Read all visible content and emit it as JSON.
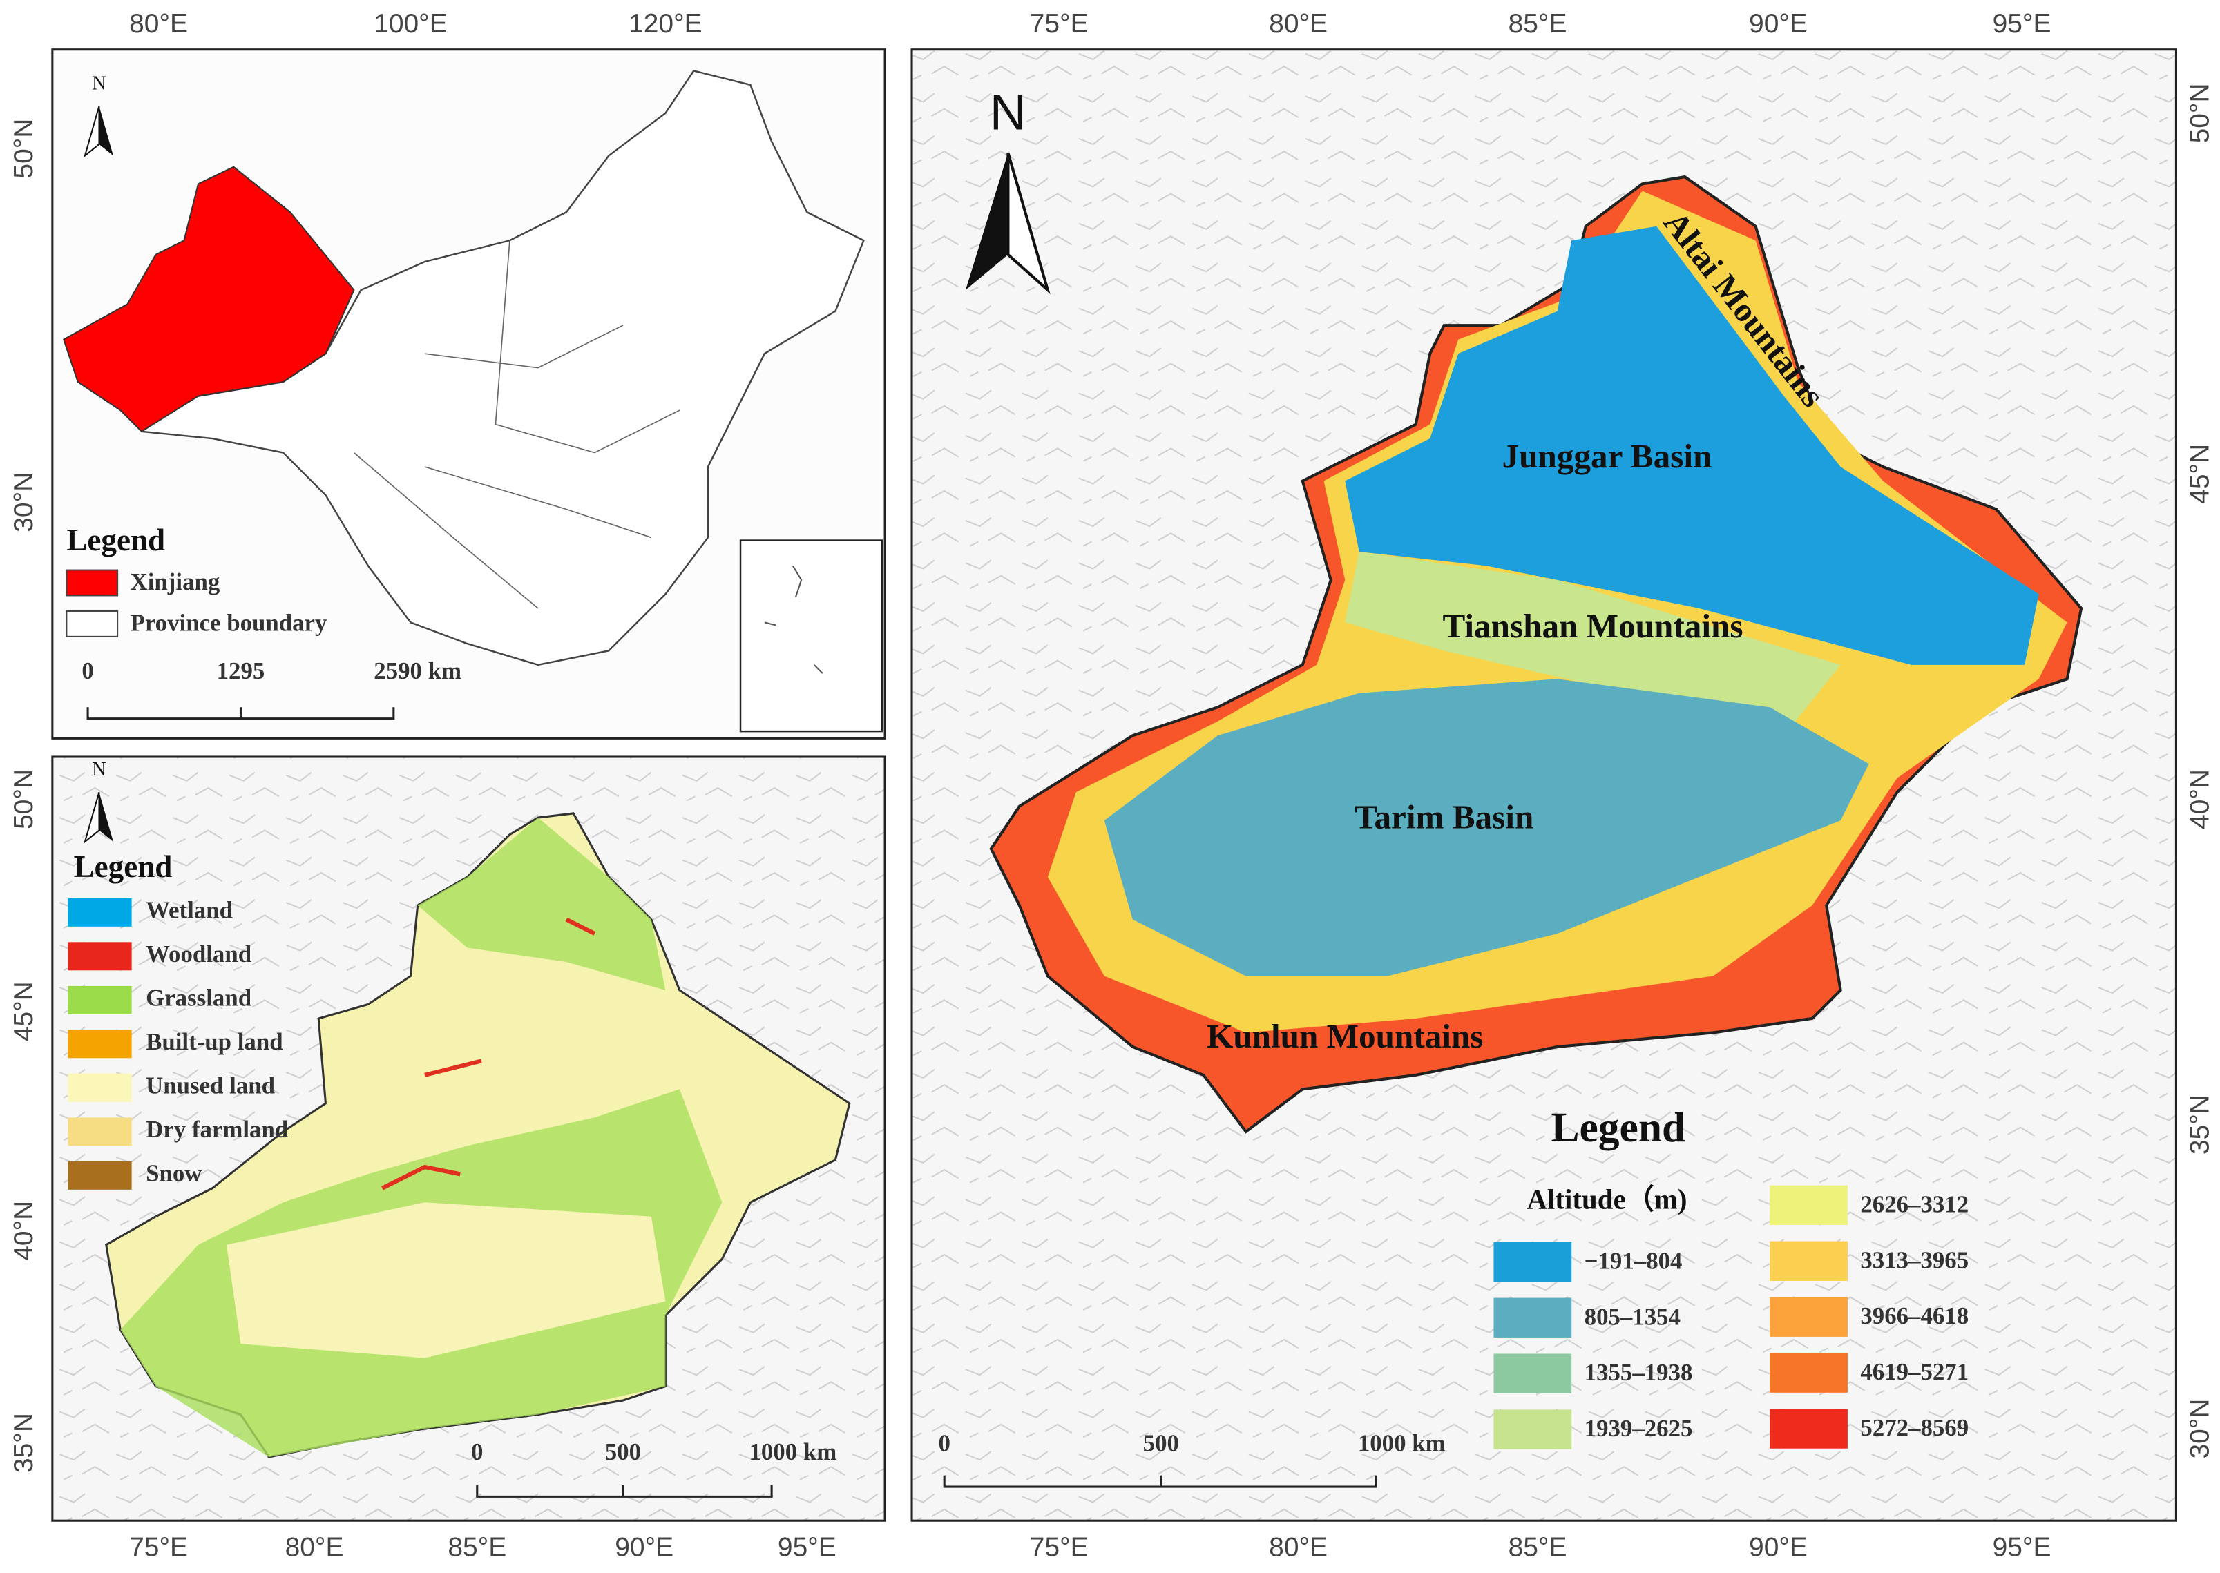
{
  "panel_a": {
    "top_labels": [
      "80°E",
      "100°E",
      "120°E"
    ],
    "left_labels": [
      "50°N",
      "30°N"
    ],
    "north": "N",
    "legend_title": "Legend",
    "legend_items": [
      {
        "label": "Xinjiang",
        "color": "#ff0000"
      },
      {
        "label": "Province boundary",
        "color": "#ffffff"
      }
    ],
    "scale_labels": [
      "0",
      "1295",
      "2590 km"
    ]
  },
  "panel_b": {
    "bottom_labels": [
      "75°E",
      "80°E",
      "85°E",
      "90°E",
      "95°E"
    ],
    "left_labels": [
      "50°N",
      "45°N",
      "40°N",
      "35°N"
    ],
    "north": "N",
    "legend_title": "Legend",
    "legend_items": [
      {
        "label": "Wetland",
        "color": "#00a9e6"
      },
      {
        "label": "Woodland",
        "color": "#e8261b"
      },
      {
        "label": "Grassland",
        "color": "#9bdc4a"
      },
      {
        "label": "Built-up land",
        "color": "#f5a300"
      },
      {
        "label": "Unused land",
        "color": "#fbf7b8"
      },
      {
        "label": "Dry farmland",
        "color": "#f6dc82"
      },
      {
        "label": "Snow",
        "color": "#a8701e"
      }
    ],
    "scale_labels": [
      "0",
      "500",
      "1000 km"
    ]
  },
  "panel_c": {
    "top_labels": [
      "75°E",
      "80°E",
      "85°E",
      "90°E",
      "95°E"
    ],
    "bottom_labels": [
      "75°E",
      "80°E",
      "85°E",
      "90°E",
      "95°E"
    ],
    "right_labels": [
      "50°N",
      "45°N",
      "40°N",
      "35°N",
      "30°N"
    ],
    "north": "N",
    "places": [
      "Altai Mountains",
      "Junggar Basin",
      "Tianshan Mountains",
      "Tarim Basin",
      "Kunlun Mountains"
    ],
    "legend_title": "Legend",
    "legend_subtitle": "Altitude（m)",
    "legend_items": [
      {
        "label": "−191–804",
        "color": "#1a9fd9"
      },
      {
        "label": "805–1354",
        "color": "#5aaec0"
      },
      {
        "label": "1355–1938",
        "color": "#8cc9a0"
      },
      {
        "label": "1939–2625",
        "color": "#c6e38e"
      },
      {
        "label": "2626–3312",
        "color": "#edf27a"
      },
      {
        "label": "3313–3965",
        "color": "#fbcf4f"
      },
      {
        "label": "3966–4618",
        "color": "#fba23a"
      },
      {
        "label": "4619–5271",
        "color": "#f77528"
      },
      {
        "label": "5272–8569",
        "color": "#ee2b1c"
      }
    ],
    "scale_labels": [
      "0",
      "500",
      "1000 km"
    ]
  }
}
